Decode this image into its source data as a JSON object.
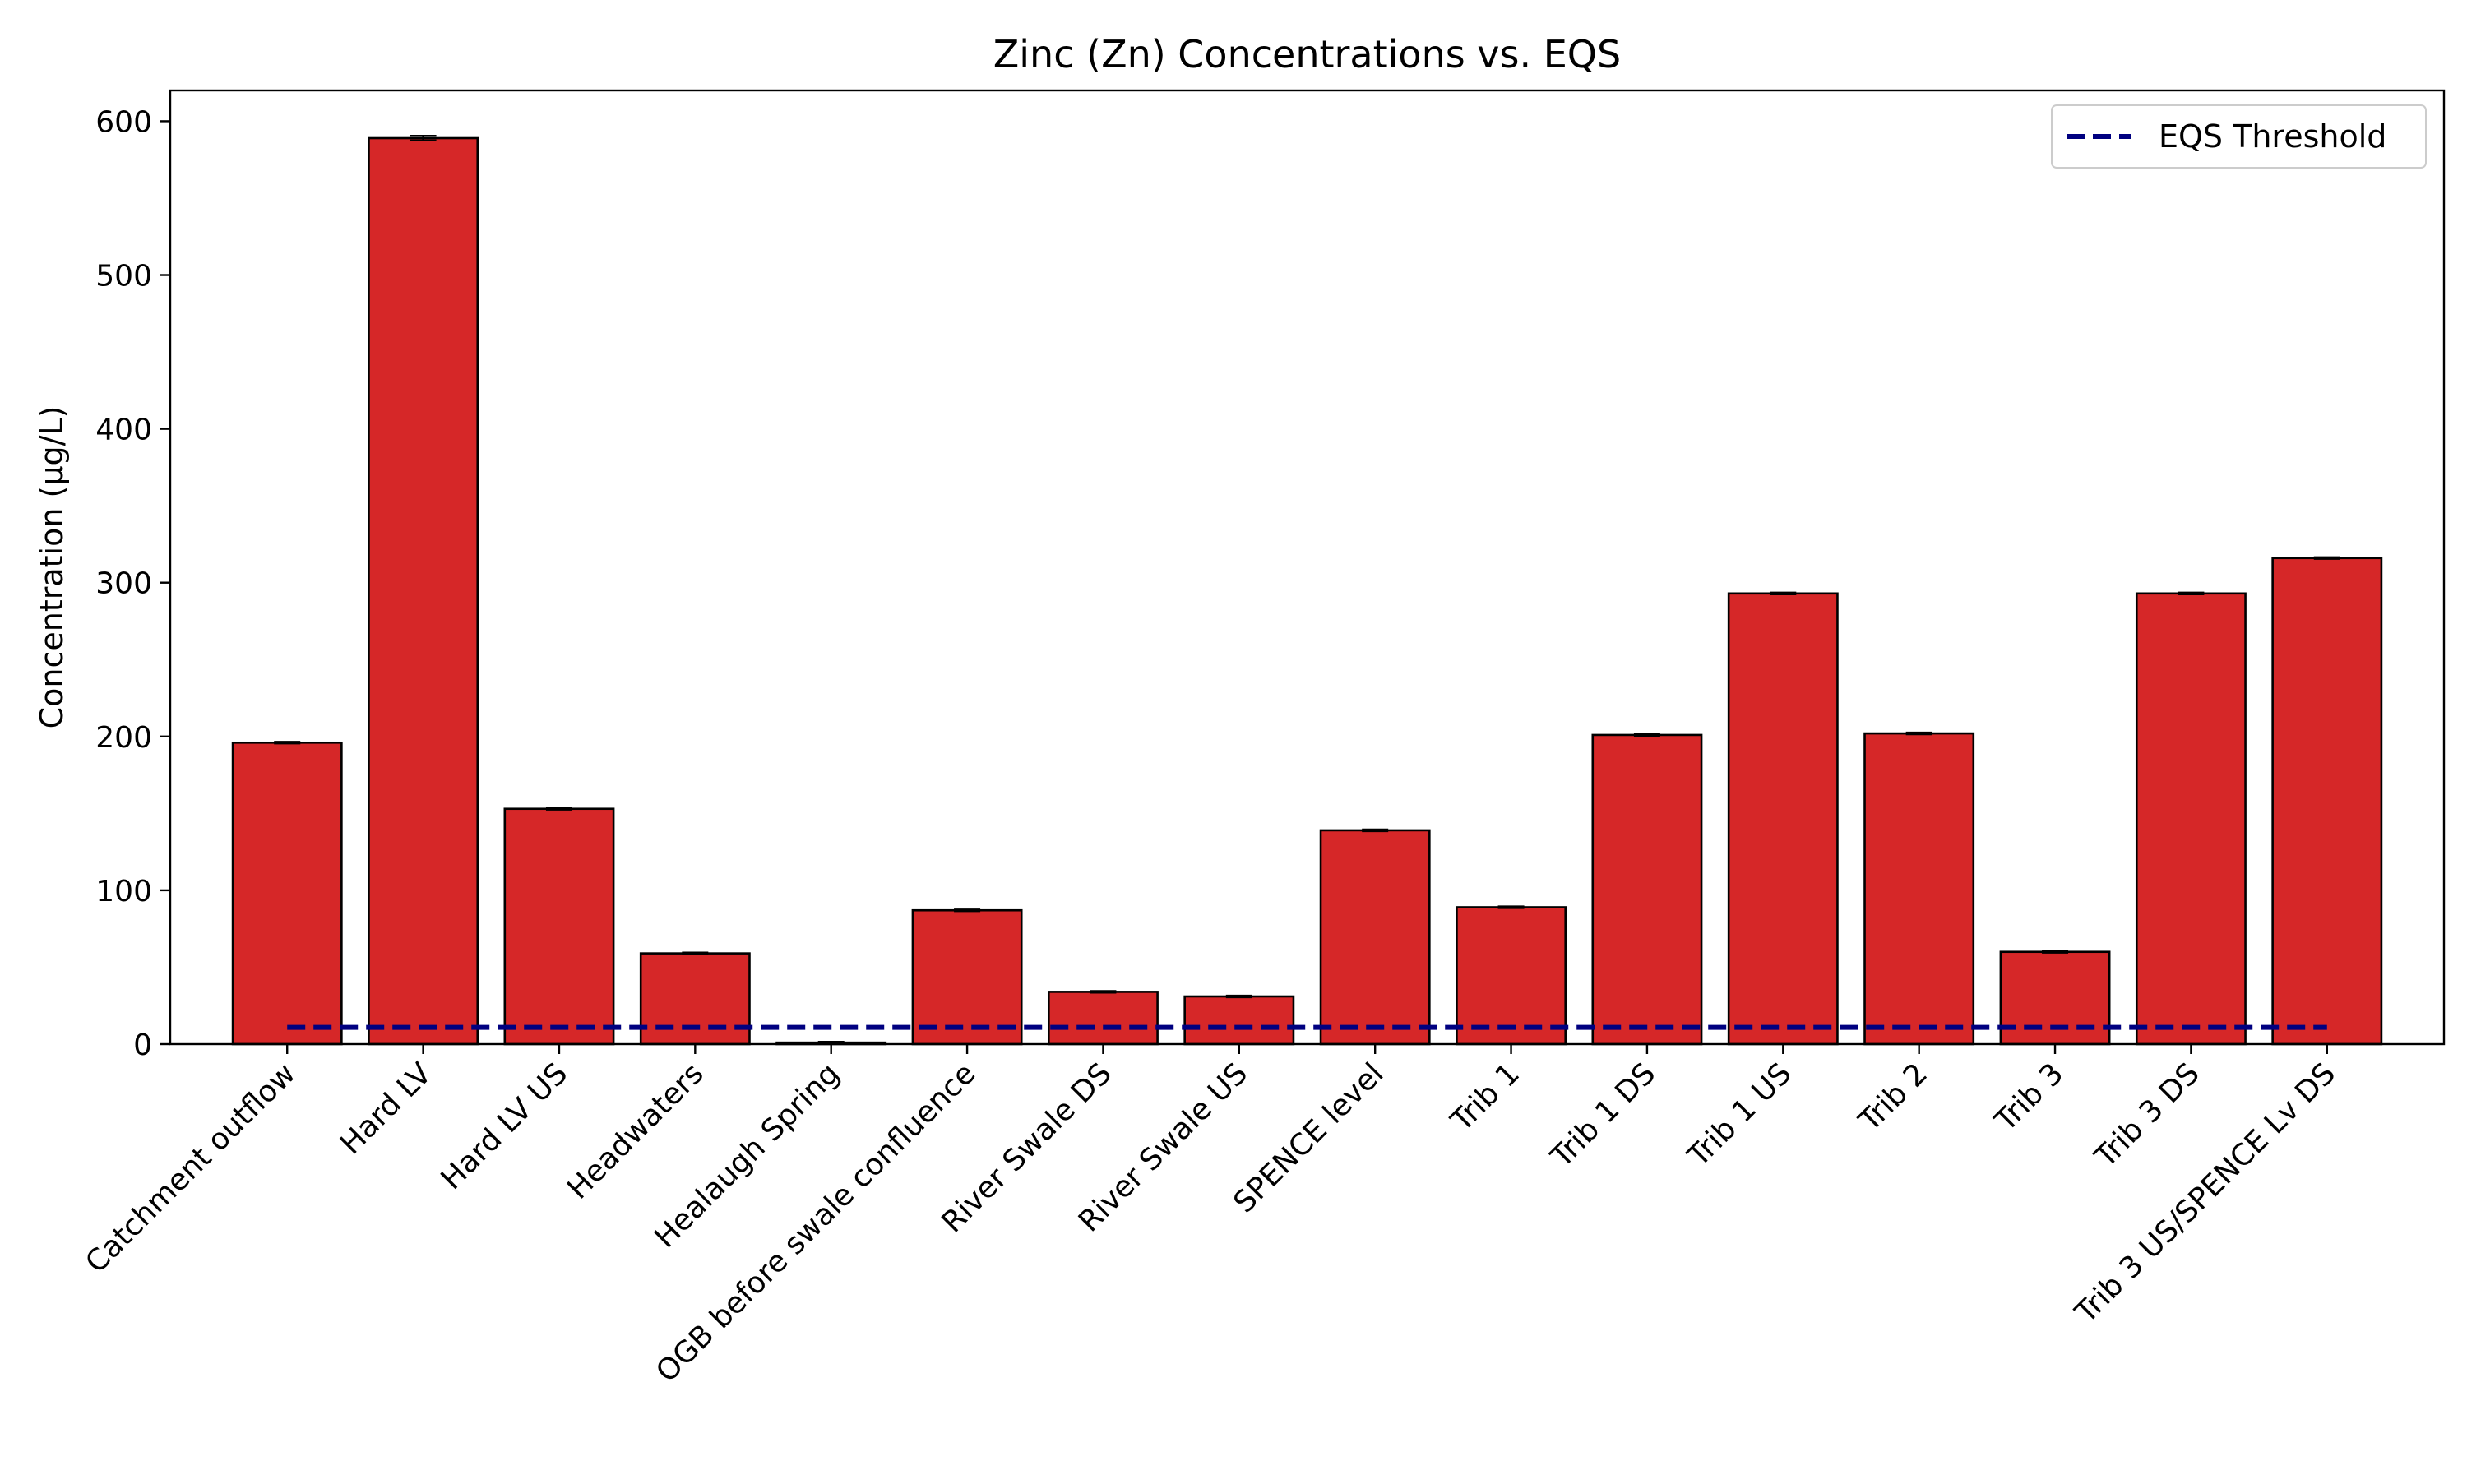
{
  "chart_data": {
    "type": "bar",
    "title": "Zinc (Zn) Concentrations vs. EQS",
    "xlabel": "",
    "ylabel": "Concentration (µg/L)",
    "ylim": [
      0,
      620
    ],
    "yticks": [
      0,
      100,
      200,
      300,
      400,
      500,
      600
    ],
    "categories": [
      "Catchment outflow",
      "Hard LV",
      "Hard LV US",
      "Headwaters",
      "Healaugh Spring",
      "OGB before swale confluence",
      "River Swale DS",
      "River Swale US",
      "SPENCE level",
      "Trib 1",
      "Trib 1 DS",
      "Trib 1 US",
      "Trib 2",
      "Trib 3",
      "Trib 3 DS",
      "Trib 3 US/SPENCE Lv DS"
    ],
    "values": [
      196,
      589,
      153,
      59,
      1,
      87,
      34,
      31,
      139,
      89,
      201,
      293,
      202,
      60,
      293,
      316
    ],
    "errors": [
      0.5,
      1.5,
      0.5,
      0.5,
      0.5,
      0.5,
      0.5,
      0.5,
      0.5,
      0.5,
      0.5,
      0.5,
      0.5,
      0.5,
      0.5,
      0.5
    ],
    "bar_color": "#d62728",
    "bar_edge_color": "#000000",
    "eqs_threshold": {
      "label": "EQS Threshold",
      "value": 10.9,
      "color": "#000080",
      "style": "dashed"
    },
    "legend_position": "top-right",
    "grid": false
  }
}
